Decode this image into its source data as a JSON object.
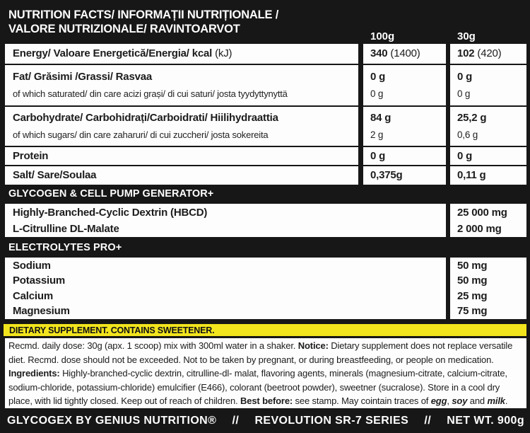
{
  "colors": {
    "background_black": "#171717",
    "cell_white": "#fdfdfd",
    "banner_yellow": "#f2e51d",
    "text_dark": "#1c1c1c",
    "text_white": "#ffffff"
  },
  "header": {
    "title_line1": "NUTRITION FACTS/ INFORMAȚII NUTRIȚIONALE /",
    "title_line2": "VALORE NUTRIZIONALE/ RAVINTOARVOT",
    "col_100g": "100g",
    "col_30g": "30g"
  },
  "nutrition": {
    "groups": [
      {
        "label": "Energy/ Valoare Energetică/Energia/ kcal",
        "label_note": " (kJ)",
        "v100": "340",
        "v100_note": " (1400)",
        "v30": "102",
        "v30_note": " (420)"
      },
      {
        "label": "Fat/ Grăsimi /Grassi/ Rasvaa",
        "v100": "0 g",
        "v30": "0 g",
        "sub_label": "of which saturated/ din care acizi grași/ di cui saturi/ josta tyydyttynyttä",
        "sub_v100": "0 g",
        "sub_v30": "0 g"
      },
      {
        "label": "Carbohydrate/ Carbohidrați/Carboidrati/ Hiilihydraattia",
        "v100": "84 g",
        "v30": "25,2 g",
        "sub_label": "of which sugars/ din care zaharuri/ di cui zuccheri/ josta sokereita",
        "sub_v100": "2 g",
        "sub_v30": "0,6 g"
      },
      {
        "label": "Protein",
        "v100": "0 g",
        "v30": "0 g"
      },
      {
        "label": "Salt/ Sare/Soulaa",
        "v100": "0,375g",
        "v30": "0,11 g"
      }
    ]
  },
  "sections": [
    {
      "title": "GLYCOGEN & CELL PUMP GENERATOR+",
      "rows": [
        {
          "label": "Highly-Branched-Cyclic Dextrin (HBCD)",
          "value": "25 000 mg"
        },
        {
          "label": "L-Citrulline DL-Malate",
          "value": "2 000 mg"
        }
      ]
    },
    {
      "title": "ELECTROLYTES PRO+",
      "rows": [
        {
          "label": "Sodium",
          "value": "50 mg"
        },
        {
          "label": "Potassium",
          "value": "50 mg"
        },
        {
          "label": "Calcium",
          "value": "25 mg"
        },
        {
          "label": "Magnesium",
          "value": "75 mg"
        }
      ]
    }
  ],
  "banner": {
    "text": "DIETARY SUPPLEMENT. CONTAINS SWEETENER."
  },
  "info": {
    "segments": [
      {
        "t": "Recmd. daily dose: 30g (apx. 1 scoop) mix with 300ml water in a shaker. "
      },
      {
        "t": "Notice:",
        "b": true
      },
      {
        "t": " Dietary supplement does not replace versatile diet. Recmd. dose should not be exceeded. Not to be taken by pregnant, or during breastfeeding, or people on medication. "
      },
      {
        "t": "Ingredients:",
        "b": true
      },
      {
        "t": " Highly-branched-cyclic dextrin, citrulline-dl- malat, flavoring agents, minerals (magnesium-citrate, calcium-citrate, sodium-chloride, potassium-chloride) emulcifier (E466), colorant (beetroot powder), sweetner (sucralose). Store in a cool dry place, with lid tightly closed. Keep out of reach of children. "
      },
      {
        "t": "Best before:",
        "b": true
      },
      {
        "t": " see stamp. May cointain traces of "
      },
      {
        "t": "egg",
        "b": true,
        "i": true
      },
      {
        "t": ", "
      },
      {
        "t": "soy",
        "b": true,
        "i": true
      },
      {
        "t": " and "
      },
      {
        "t": "milk",
        "b": true,
        "i": true
      },
      {
        "t": "."
      }
    ]
  },
  "footer": {
    "parts": [
      "GLYCOGEX BY GENIUS NUTRITION®",
      "//",
      "REVOLUTION SR-7 SERIES",
      "//",
      "NET WT. 900g"
    ]
  }
}
